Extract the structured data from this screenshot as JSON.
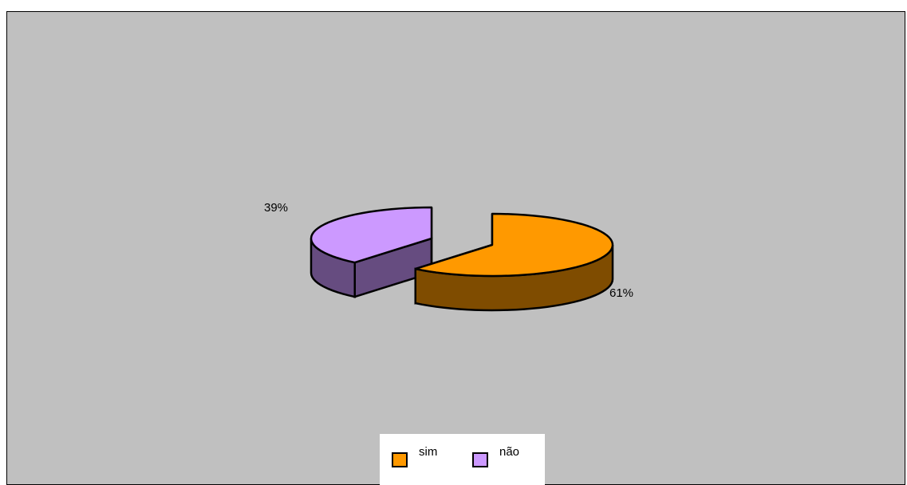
{
  "chart_data": {
    "type": "pie",
    "style": "3d-exploded",
    "slices": [
      {
        "label": "sim",
        "value": 61,
        "display": "61%",
        "color": "#ff9900",
        "side_color": "#7f4c00"
      },
      {
        "label": "não",
        "value": 39,
        "display": "39%",
        "color": "#cc99ff",
        "side_color": "#664c80"
      }
    ],
    "legend": {
      "placement": "bottom",
      "entries": [
        "sim",
        "não"
      ]
    },
    "background": "#c0c0c0"
  }
}
